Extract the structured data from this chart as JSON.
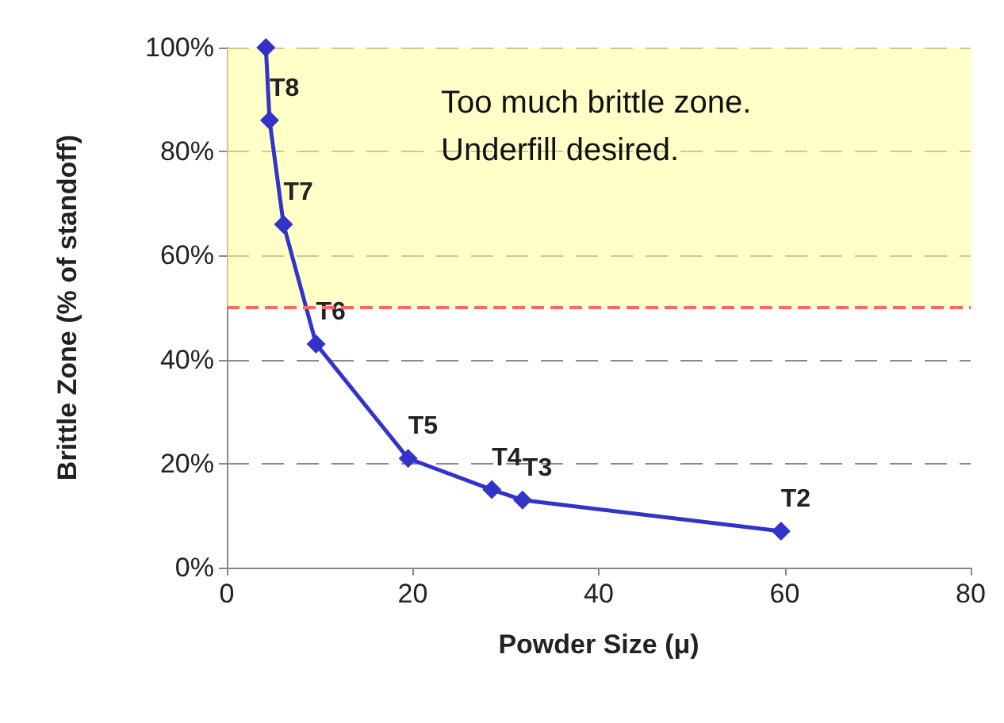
{
  "chart_data": {
    "type": "line",
    "xlabel": "Powder Size (μ)",
    "ylabel": "Brittle Zone (% of standoff)",
    "x": [
      4.2,
      4.6,
      6.1,
      9.6,
      19.5,
      28.5,
      31.8,
      59.6
    ],
    "series": [
      {
        "color": "#3333cc",
        "values": [
          100,
          86,
          66,
          43,
          21,
          15,
          13,
          7
        ],
        "value_labels": [
          null,
          "T8",
          "T7",
          "T6",
          "T5",
          "T4",
          "T3",
          "T2"
        ]
      }
    ],
    "xlim": [
      0,
      80
    ],
    "xticks": [
      0,
      20,
      40,
      60,
      80
    ],
    "ylim": [
      0,
      100
    ],
    "yticks": [
      {
        "value": 0,
        "label": "0%"
      },
      {
        "value": 20,
        "label": "20%"
      },
      {
        "value": 40,
        "label": "40%"
      },
      {
        "value": 60,
        "label": "60%"
      },
      {
        "value": 80,
        "label": "80%"
      },
      {
        "value": 100,
        "label": "100%"
      }
    ],
    "grid": "y",
    "marker": "diamond",
    "line_style": "solid",
    "ref_lines": [
      {
        "axis": "y",
        "value": 50,
        "color": "#ff6666",
        "line_style": "dashed"
      }
    ],
    "bands": [
      {
        "axis": "y",
        "from": 50,
        "to": 100,
        "color": "#ffff99",
        "label": "Too much brittle zone.\nUnderfill desired."
      }
    ]
  }
}
